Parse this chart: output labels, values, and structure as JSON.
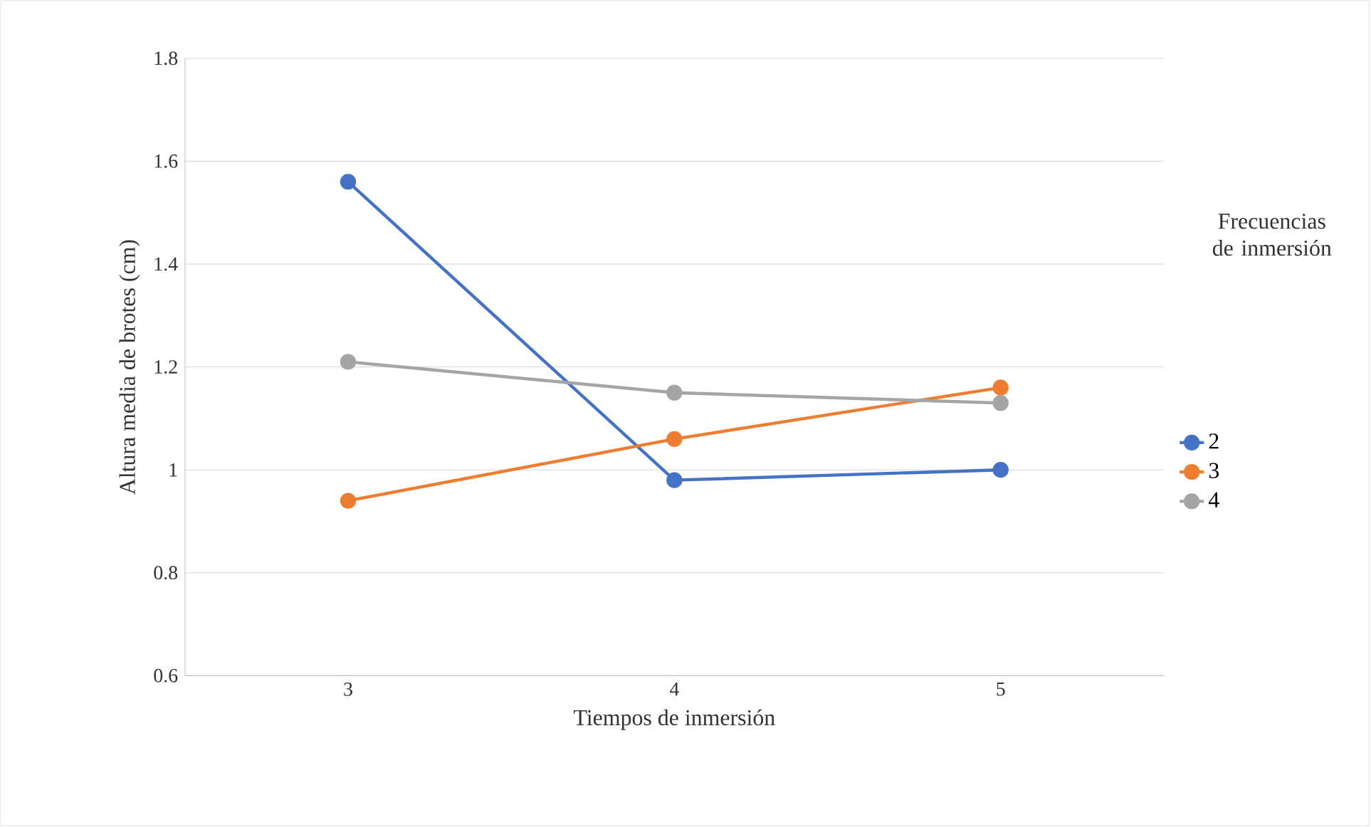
{
  "chart_data": {
    "type": "line",
    "xlabel": "Tiempos de inmersión",
    "ylabel": "Altura media de brotes (cm)",
    "legend_title": "Frecuencias de inmersión",
    "categories": [
      "3",
      "4",
      "5"
    ],
    "series": [
      {
        "name": "2",
        "color": "#4472c4",
        "values": [
          1.56,
          0.98,
          1.0
        ]
      },
      {
        "name": "3",
        "color": "#ed7d31",
        "values": [
          0.94,
          1.06,
          1.16
        ]
      },
      {
        "name": "4",
        "color": "#a5a5a5",
        "values": [
          1.21,
          1.15,
          1.13
        ]
      }
    ],
    "ylim": [
      0.6,
      1.8
    ],
    "yticks": [
      0.6,
      0.8,
      1,
      1.2,
      1.4,
      1.6,
      1.8
    ],
    "grid": "y",
    "legend": "right",
    "marker": "circle",
    "line_style": "solid"
  }
}
